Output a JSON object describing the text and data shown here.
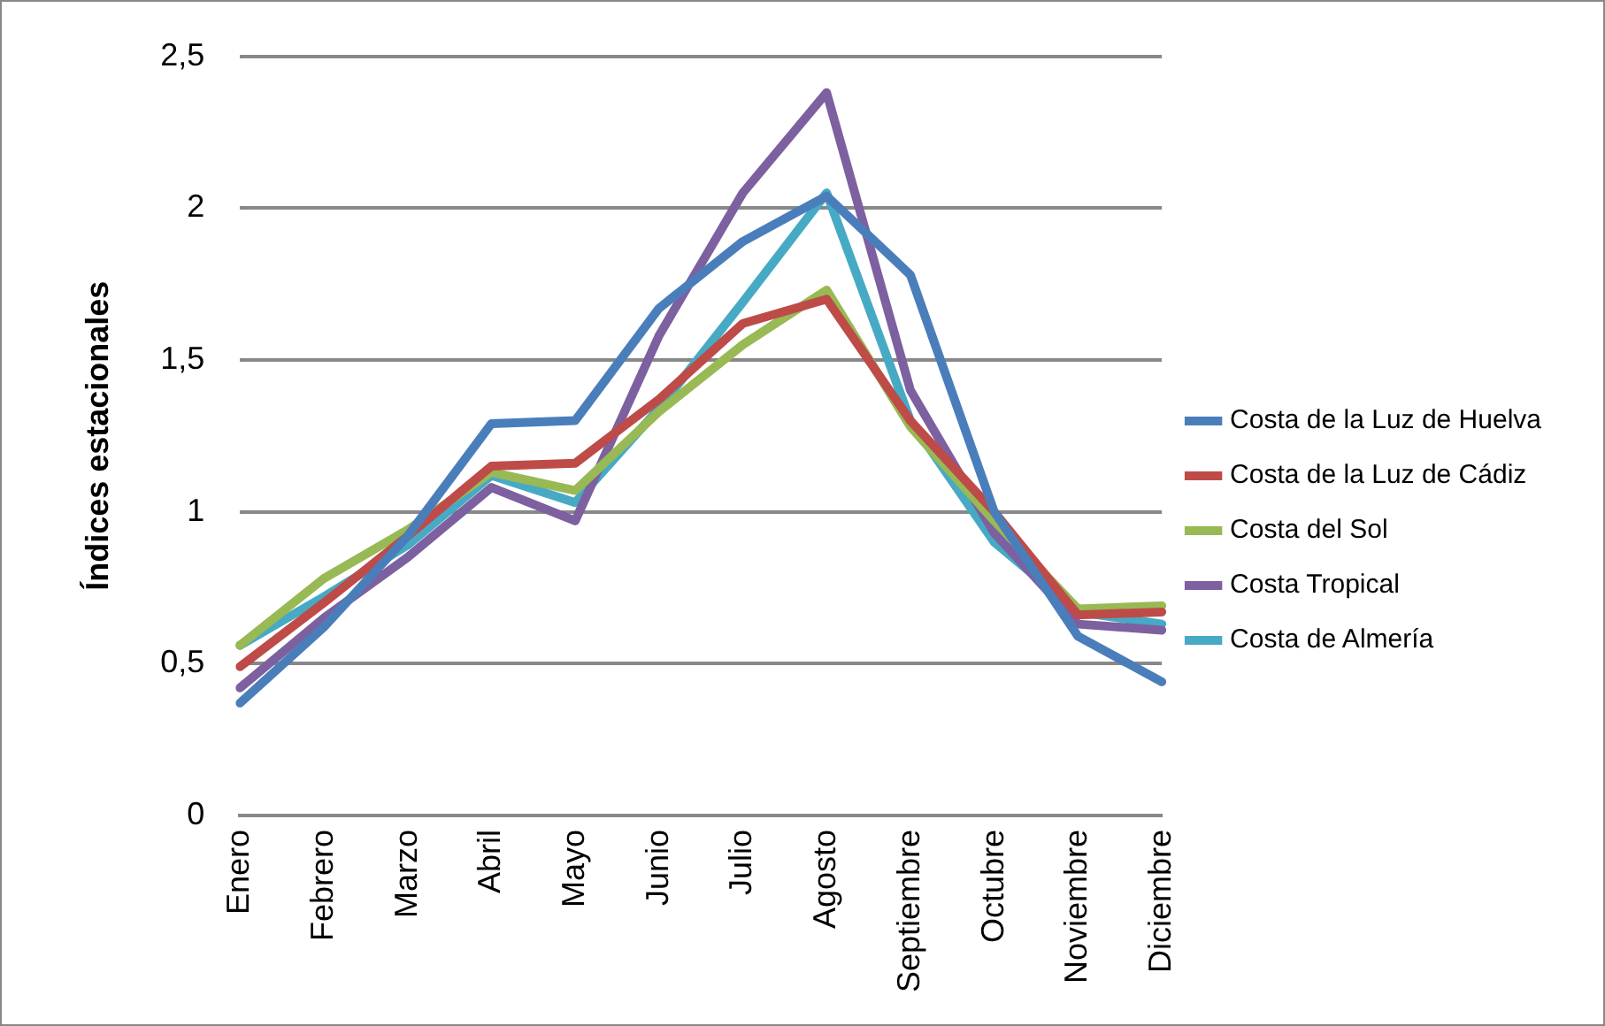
{
  "chart_data": {
    "type": "line",
    "ylabel": "Índices estacionales",
    "categories": [
      "Enero",
      "Febrero",
      "Marzo",
      "Abril",
      "Mayo",
      "Junio",
      "Julio",
      "Agosto",
      "Septiembre",
      "Octubre",
      "Noviembre",
      "Diciembre"
    ],
    "series": [
      {
        "name": "Costa de la Luz de Huelva",
        "color": "#4a7ebb",
        "values": [
          0.37,
          0.62,
          0.92,
          1.29,
          1.3,
          1.67,
          1.89,
          2.04,
          1.78,
          1.0,
          0.59,
          0.44
        ]
      },
      {
        "name": "Costa de la Luz de Cádiz",
        "color": "#be4b48",
        "values": [
          0.49,
          0.7,
          0.92,
          1.15,
          1.16,
          1.37,
          1.62,
          1.7,
          1.3,
          1.0,
          0.66,
          0.67
        ]
      },
      {
        "name": "Costa del Sol",
        "color": "#98b954",
        "values": [
          0.56,
          0.78,
          0.94,
          1.13,
          1.07,
          1.33,
          1.55,
          1.73,
          1.28,
          0.97,
          0.68,
          0.69
        ]
      },
      {
        "name": "Costa Tropical",
        "color": "#7d60a0",
        "values": [
          0.42,
          0.65,
          0.85,
          1.08,
          0.97,
          1.58,
          2.05,
          2.38,
          1.4,
          0.93,
          0.63,
          0.61
        ]
      },
      {
        "name": "Costa de Almería",
        "color": "#46aac5",
        "values": [
          0.56,
          0.72,
          0.89,
          1.12,
          1.03,
          1.34,
          1.69,
          2.05,
          1.3,
          0.9,
          0.67,
          0.63
        ]
      }
    ],
    "ylim": [
      0,
      2.5
    ],
    "yticks": [
      0,
      {
        "value": 0.5,
        "label": "0,5"
      },
      1,
      {
        "value": 1.5,
        "label": "1,5"
      },
      2,
      {
        "value": 2.5,
        "label": "2,5"
      }
    ],
    "grid": "y",
    "legend": "right",
    "marker": "none",
    "line_style": "solid"
  }
}
